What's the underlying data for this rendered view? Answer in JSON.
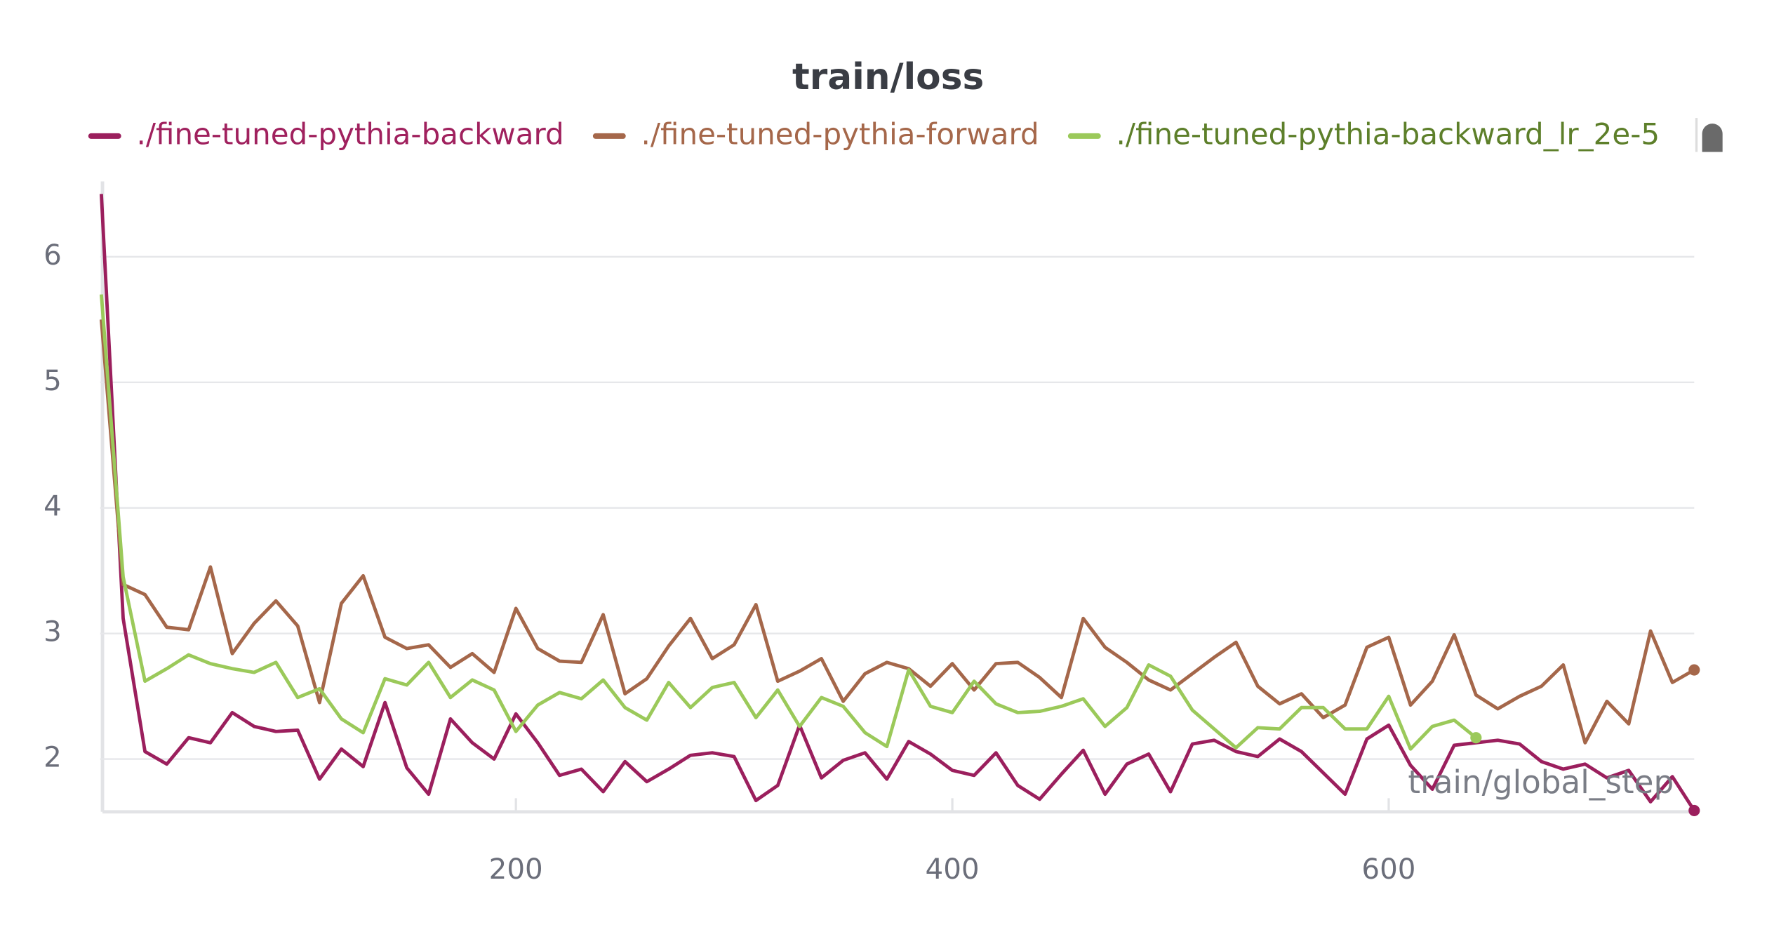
{
  "chart_data": {
    "type": "line",
    "title": "train/loss",
    "x_label": "train/global_step",
    "legend": "top",
    "grid": true,
    "x": [
      10,
      20,
      30,
      40,
      50,
      60,
      70,
      80,
      90,
      100,
      110,
      120,
      130,
      140,
      150,
      160,
      170,
      180,
      190,
      200,
      210,
      220,
      230,
      240,
      250,
      260,
      270,
      280,
      290,
      300,
      310,
      320,
      330,
      340,
      350,
      360,
      370,
      380,
      390,
      400,
      410,
      420,
      430,
      440,
      450,
      460,
      470,
      480,
      490,
      500,
      510,
      520,
      530,
      540,
      550,
      560,
      570,
      580,
      590,
      600,
      610,
      620,
      630,
      640,
      650,
      660,
      670,
      680,
      690,
      700,
      710,
      720,
      730,
      740
    ],
    "xlim": [
      10,
      740
    ],
    "xticks": [
      200,
      400,
      600
    ],
    "ylim": [
      1.58,
      6.6
    ],
    "yticks": [
      2,
      3,
      4,
      5,
      6
    ],
    "series": [
      {
        "name": "./fine-tuned-pythia-backward",
        "color": "#9b1f5d",
        "values": [
          6.5,
          3.12,
          2.06,
          1.96,
          2.17,
          2.13,
          2.37,
          2.26,
          2.22,
          2.23,
          1.84,
          2.08,
          1.94,
          2.45,
          1.93,
          1.72,
          2.32,
          2.13,
          2.0,
          2.36,
          2.13,
          1.87,
          1.92,
          1.74,
          1.98,
          1.82,
          1.92,
          2.03,
          2.05,
          2.02,
          1.67,
          1.79,
          2.27,
          1.85,
          1.99,
          2.05,
          1.84,
          2.14,
          2.04,
          1.91,
          1.87,
          2.05,
          1.79,
          1.68,
          1.88,
          2.07,
          1.72,
          1.96,
          2.04,
          1.74,
          2.12,
          2.15,
          2.06,
          2.02,
          2.16,
          2.06,
          1.89,
          1.72,
          2.16,
          2.27,
          1.95,
          1.76,
          2.11,
          2.13,
          2.15,
          2.12,
          1.98,
          1.92,
          1.96,
          1.85,
          1.91,
          1.66,
          1.86,
          1.59
        ]
      },
      {
        "name": "./fine-tuned-pythia-forward",
        "color": "#a5674a",
        "values": [
          5.5,
          3.39,
          3.31,
          3.05,
          3.03,
          3.53,
          2.84,
          3.08,
          3.26,
          3.06,
          2.45,
          3.24,
          3.46,
          2.97,
          2.88,
          2.91,
          2.73,
          2.84,
          2.69,
          3.2,
          2.88,
          2.78,
          2.77,
          3.15,
          2.52,
          2.64,
          2.9,
          3.12,
          2.8,
          2.91,
          3.23,
          2.62,
          2.7,
          2.8,
          2.46,
          2.68,
          2.77,
          2.72,
          2.58,
          2.76,
          2.55,
          2.76,
          2.77,
          2.65,
          2.49,
          3.12,
          2.89,
          2.77,
          2.63,
          2.55,
          2.68,
          2.81,
          2.93,
          2.58,
          2.44,
          2.52,
          2.33,
          2.43,
          2.89,
          2.97,
          2.43,
          2.62,
          2.99,
          2.51,
          2.4,
          2.5,
          2.58,
          2.75,
          2.13,
          2.46,
          2.28,
          3.02,
          2.61,
          2.71
        ]
      },
      {
        "name": "./fine-tuned-pythia-backward_lr_2e-5",
        "color": "#9bc95a",
        "values": [
          5.7,
          3.45,
          2.62,
          2.72,
          2.83,
          2.76,
          2.72,
          2.69,
          2.77,
          2.49,
          2.56,
          2.32,
          2.21,
          2.64,
          2.59,
          2.77,
          2.49,
          2.63,
          2.55,
          2.22,
          2.43,
          2.53,
          2.48,
          2.63,
          2.41,
          2.31,
          2.61,
          2.41,
          2.57,
          2.61,
          2.33,
          2.55,
          2.26,
          2.49,
          2.42,
          2.21,
          2.1,
          2.71,
          2.42,
          2.37,
          2.62,
          2.44,
          2.37,
          2.38,
          2.42,
          2.48,
          2.26,
          2.41,
          2.75,
          2.66,
          2.39,
          2.24,
          2.09,
          2.25,
          2.24,
          2.41,
          2.41,
          2.24,
          2.24,
          2.5,
          2.08,
          2.26,
          2.31,
          2.17,
          null,
          null,
          null,
          null,
          null,
          null,
          null,
          null,
          null,
          null
        ]
      }
    ]
  }
}
